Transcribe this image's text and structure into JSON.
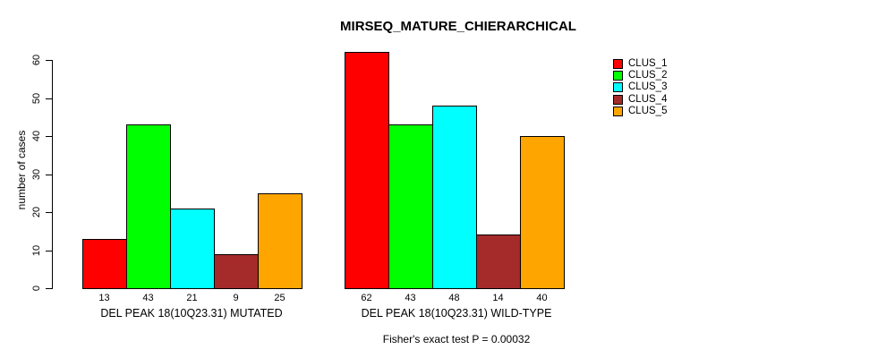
{
  "chart_data": {
    "type": "bar",
    "title": "MIRSEQ_MATURE_CHIERARCHICAL",
    "ylabel": "number of cases",
    "ylim": [
      0,
      60
    ],
    "yticks": [
      0,
      10,
      20,
      30,
      40,
      50,
      60
    ],
    "grid": false,
    "legend_position": "top-right",
    "legend": [
      {
        "label": "CLUS_1",
        "color": "#FF0000"
      },
      {
        "label": "CLUS_2",
        "color": "#00FF00"
      },
      {
        "label": "CLUS_3",
        "color": "#00FFFF"
      },
      {
        "label": "CLUS_4",
        "color": "#A52A2A"
      },
      {
        "label": "CLUS_5",
        "color": "#FFA500"
      }
    ],
    "groups": [
      {
        "label": "DEL PEAK 18(10Q23.31) MUTATED",
        "values": [
          13,
          43,
          21,
          9,
          25
        ]
      },
      {
        "label": "DEL PEAK 18(10Q23.31) WILD-TYPE",
        "values": [
          62,
          43,
          48,
          14,
          40
        ]
      }
    ],
    "footnote": "Fisher's exact test P = 0.00032",
    "axis_color": "#000000",
    "bar_border_color": "#000000"
  }
}
